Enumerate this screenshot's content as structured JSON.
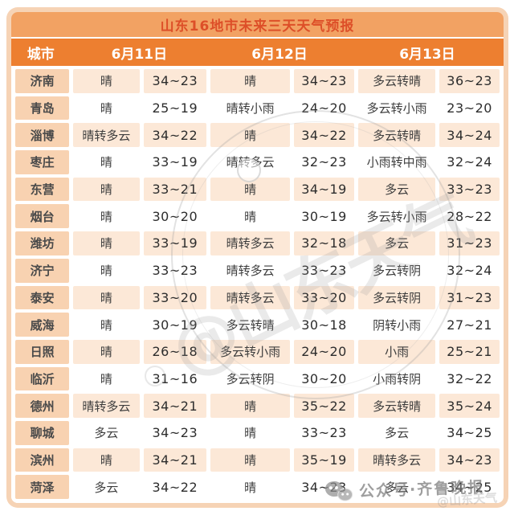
{
  "title": "山东16地市未来三天天气预报",
  "columns": {
    "city": "城市",
    "dates": [
      "6月11日",
      "6月12日",
      "6月13日"
    ]
  },
  "rows": [
    {
      "city": "济南",
      "forecasts": [
        {
          "weather": "晴",
          "temp": "34~23"
        },
        {
          "weather": "晴",
          "temp": "34~23"
        },
        {
          "weather": "多云转晴",
          "temp": "36~23"
        }
      ]
    },
    {
      "city": "青岛",
      "forecasts": [
        {
          "weather": "晴",
          "temp": "25~19"
        },
        {
          "weather": "晴转小雨",
          "temp": "24~20"
        },
        {
          "weather": "多云转小雨",
          "temp": "23~20"
        }
      ]
    },
    {
      "city": "淄博",
      "forecasts": [
        {
          "weather": "晴转多云",
          "temp": "34~22"
        },
        {
          "weather": "晴",
          "temp": "34~22"
        },
        {
          "weather": "多云转晴",
          "temp": "34~24"
        }
      ]
    },
    {
      "city": "枣庄",
      "forecasts": [
        {
          "weather": "晴",
          "temp": "33~19"
        },
        {
          "weather": "晴转多云",
          "temp": "32~23"
        },
        {
          "weather": "小雨转中雨",
          "temp": "32~24"
        }
      ]
    },
    {
      "city": "东营",
      "forecasts": [
        {
          "weather": "晴",
          "temp": "33~21"
        },
        {
          "weather": "晴",
          "temp": "34~19"
        },
        {
          "weather": "多云",
          "temp": "33~23"
        }
      ]
    },
    {
      "city": "烟台",
      "forecasts": [
        {
          "weather": "晴",
          "temp": "30~20"
        },
        {
          "weather": "晴",
          "temp": "30~19"
        },
        {
          "weather": "多云转小雨",
          "temp": "28~22"
        }
      ]
    },
    {
      "city": "潍坊",
      "forecasts": [
        {
          "weather": "晴",
          "temp": "33~19"
        },
        {
          "weather": "晴转多云",
          "temp": "32~18"
        },
        {
          "weather": "多云",
          "temp": "31~23"
        }
      ]
    },
    {
      "city": "济宁",
      "forecasts": [
        {
          "weather": "晴",
          "temp": "33~23"
        },
        {
          "weather": "晴转多云",
          "temp": "33~23"
        },
        {
          "weather": "多云转阴",
          "temp": "32~24"
        }
      ]
    },
    {
      "city": "泰安",
      "forecasts": [
        {
          "weather": "晴",
          "temp": "33~20"
        },
        {
          "weather": "晴转多云",
          "temp": "33~20"
        },
        {
          "weather": "多云转阴",
          "temp": "31~23"
        }
      ]
    },
    {
      "city": "威海",
      "forecasts": [
        {
          "weather": "晴",
          "temp": "30~19"
        },
        {
          "weather": "多云转晴",
          "temp": "30~18"
        },
        {
          "weather": "阴转小雨",
          "temp": "27~21"
        }
      ]
    },
    {
      "city": "日照",
      "forecasts": [
        {
          "weather": "晴",
          "temp": "26~18"
        },
        {
          "weather": "多云转小雨",
          "temp": "24~20"
        },
        {
          "weather": "小雨",
          "temp": "25~21"
        }
      ]
    },
    {
      "city": "临沂",
      "forecasts": [
        {
          "weather": "晴",
          "temp": "31~16"
        },
        {
          "weather": "多云转阴",
          "temp": "30~20"
        },
        {
          "weather": "小雨转阴",
          "temp": "32~22"
        }
      ]
    },
    {
      "city": "德州",
      "forecasts": [
        {
          "weather": "晴转多云",
          "temp": "34~21"
        },
        {
          "weather": "晴",
          "temp": "35~22"
        },
        {
          "weather": "多云转晴",
          "temp": "35~24"
        }
      ]
    },
    {
      "city": "聊城",
      "forecasts": [
        {
          "weather": "多云",
          "temp": "34~23"
        },
        {
          "weather": "晴",
          "temp": "33~23"
        },
        {
          "weather": "多云",
          "temp": "34~25"
        }
      ]
    },
    {
      "city": "滨州",
      "forecasts": [
        {
          "weather": "晴",
          "temp": "34~21"
        },
        {
          "weather": "晴",
          "temp": "35~19"
        },
        {
          "weather": "晴转多云",
          "temp": "34~23"
        }
      ]
    },
    {
      "city": "菏泽",
      "forecasts": [
        {
          "weather": "多云",
          "temp": "34~22"
        },
        {
          "weather": "晴",
          "temp": "34~23"
        },
        {
          "weather": "多云",
          "temp": "34~25"
        }
      ]
    }
  ],
  "watermarks": {
    "center_stamp_text": "@山东天气",
    "bottom_label": "公众号·齐鲁晚报",
    "bottom_sub": "@山东天气"
  },
  "colors": {
    "frame": "#f6d3b5",
    "title_bg": "#f2a263",
    "title_text": "#dd4f28",
    "header_bg": "#ed7f30",
    "header_text": "#ffffff",
    "city_cell_bg": "#f8d2b1",
    "odd_row_bg": "#fce8d7",
    "even_row_bg": "#ffffff",
    "watermark_gray": "#8c8c8c"
  }
}
